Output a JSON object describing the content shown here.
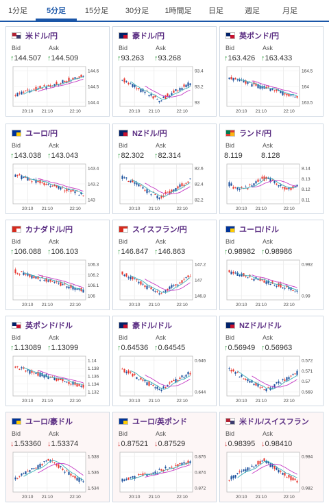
{
  "tabs": [
    {
      "label": "1分足",
      "active": false
    },
    {
      "label": "5分足",
      "active": true
    },
    {
      "label": "15分足",
      "active": false
    },
    {
      "label": "30分足",
      "active": false
    },
    {
      "label": "1時間足",
      "active": false
    },
    {
      "label": "日足",
      "active": false
    },
    {
      "label": "週足",
      "active": false
    },
    {
      "label": "月足",
      "active": false
    }
  ],
  "colors": {
    "up": "#e8352d",
    "down": "#1a4f9c",
    "ma1": "#c43ac4",
    "ma2": "#3bb0b8",
    "accent": "#1a56a8",
    "title": "#5a2d82"
  },
  "panels": [
    {
      "pair": "米ドル/円",
      "flag": "us",
      "bid": "144.507",
      "ask": "144.509",
      "dir": "up",
      "yticks": [
        "144.6",
        "144.5",
        "144.4"
      ],
      "trend": "up"
    },
    {
      "pair": "豪ドル/円",
      "flag": "au",
      "bid": "93.263",
      "ask": "93.268",
      "dir": "up",
      "yticks": [
        "93.4",
        "93.2",
        "93"
      ],
      "trend": "vup"
    },
    {
      "pair": "英ポンド/円",
      "flag": "gb",
      "bid": "163.426",
      "ask": "163.433",
      "dir": "up",
      "yticks": [
        "164.5",
        "164",
        "163.5"
      ],
      "trend": "down"
    },
    {
      "pair": "ユーロ/円",
      "flag": "eu",
      "bid": "143.038",
      "ask": "143.043",
      "dir": "up",
      "yticks": [
        "143.4",
        "143.2",
        "143"
      ],
      "trend": "down"
    },
    {
      "pair": "NZドル/円",
      "flag": "nz",
      "bid": "82.302",
      "ask": "82.314",
      "dir": "up",
      "yticks": [
        "82.6",
        "82.4",
        "82.2"
      ],
      "trend": "vup"
    },
    {
      "pair": "ランド/円",
      "flag": "za",
      "bid": "8.119",
      "ask": "8.128",
      "dir": "none",
      "yticks": [
        "8.14",
        "8.13",
        "8.12",
        "8.11"
      ],
      "trend": "flat"
    },
    {
      "pair": "カナダドル/円",
      "flag": "ca",
      "bid": "106.088",
      "ask": "106.103",
      "dir": "up",
      "yticks": [
        "106.3",
        "106.2",
        "106.1",
        "106"
      ],
      "trend": "down"
    },
    {
      "pair": "スイスフラン/円",
      "flag": "ch",
      "bid": "146.847",
      "ask": "146.863",
      "dir": "up",
      "yticks": [
        "147.2",
        "147",
        "146.8"
      ],
      "trend": "vup"
    },
    {
      "pair": "ユーロ/ドル",
      "flag": "eu",
      "bid": "0.98982",
      "ask": "0.98986",
      "dir": "up",
      "yticks": [
        "0.992",
        "0.99"
      ],
      "trend": "down"
    },
    {
      "pair": "英ポンド/ドル",
      "flag": "gb",
      "bid": "1.13089",
      "ask": "1.13099",
      "dir": "up",
      "yticks": [
        "1.14",
        "1.138",
        "1.136",
        "1.134",
        "1.132"
      ],
      "trend": "down"
    },
    {
      "pair": "豪ドル/ドル",
      "flag": "au",
      "bid": "0.64536",
      "ask": "0.64545",
      "dir": "up",
      "yticks": [
        "0.646",
        "0.644"
      ],
      "trend": "vup"
    },
    {
      "pair": "NZドル/ドル",
      "flag": "nz",
      "bid": "0.56949",
      "ask": "0.56963",
      "dir": "up",
      "yticks": [
        "0.572",
        "0.571",
        "0.57",
        "0.569"
      ],
      "trend": "vup"
    },
    {
      "pair": "ユーロ/豪ドル",
      "flag": "eu",
      "bid": "1.53360",
      "ask": "1.53374",
      "dir": "down",
      "yticks": [
        "1.538",
        "1.536",
        "1.534"
      ],
      "trend": "hump"
    },
    {
      "pair": "ユーロ/英ポンド",
      "flag": "eu",
      "bid": "0.87521",
      "ask": "0.87529",
      "dir": "down",
      "yticks": [
        "0.876",
        "0.874",
        "0.872"
      ],
      "trend": "up"
    },
    {
      "pair": "米ドル/スイスフラン",
      "flag": "us",
      "bid": "0.98395",
      "ask": "0.98410",
      "dir": "down",
      "yticks": [
        "0.984",
        "0.982"
      ],
      "trend": "hump"
    }
  ],
  "labels": {
    "bid": "Bid",
    "ask": "Ask"
  },
  "xticks": [
    "20:10",
    "21:10",
    "22:10"
  ]
}
